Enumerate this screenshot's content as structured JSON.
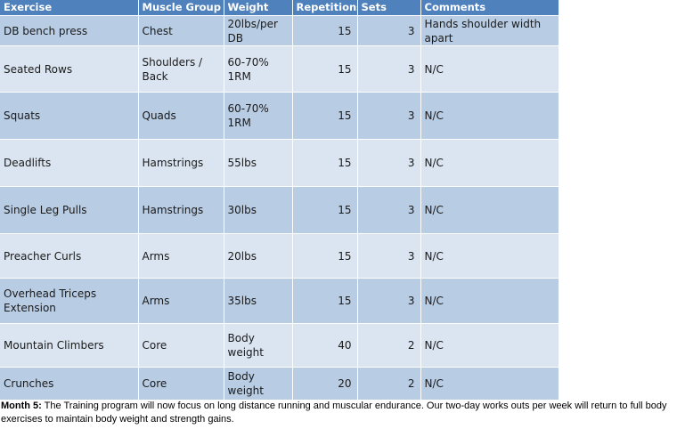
{
  "table": {
    "headers": [
      "Exercise",
      "Muscle Group",
      "Weight",
      "Repetitions",
      "Sets",
      "Comments"
    ],
    "rows": [
      {
        "exercise": "DB bench press",
        "muscle": "Chest",
        "weight": "20lbs/per DB",
        "reps": "15",
        "sets": "3",
        "comments": "Hands shoulder width apart"
      },
      {
        "exercise": "Seated Rows",
        "muscle": "Shoulders / Back",
        "weight": "60-70% 1RM",
        "reps": "15",
        "sets": "3",
        "comments": "N/C"
      },
      {
        "exercise": "Squats",
        "muscle": "Quads",
        "weight": "60-70% 1RM",
        "reps": "15",
        "sets": "3",
        "comments": "N/C"
      },
      {
        "exercise": "Deadlifts",
        "muscle": "Hamstrings",
        "weight": "55lbs",
        "reps": "15",
        "sets": "3",
        "comments": "N/C"
      },
      {
        "exercise": "Single Leg Pulls",
        "muscle": "Hamstrings",
        "weight": "30lbs",
        "reps": "15",
        "sets": "3",
        "comments": "N/C"
      },
      {
        "exercise": "Preacher Curls",
        "muscle": "Arms",
        "weight": "20lbs",
        "reps": "15",
        "sets": "3",
        "comments": "N/C"
      },
      {
        "exercise": "Overhead Triceps Extension",
        "muscle": "Arms",
        "weight": "35lbs",
        "reps": "15",
        "sets": "3",
        "comments": "N/C"
      },
      {
        "exercise": "Mountain Climbers",
        "muscle": "Core",
        "weight": "Body weight",
        "reps": "40",
        "sets": "2",
        "comments": "N/C"
      },
      {
        "exercise": "Crunches",
        "muscle": "Core",
        "weight": "Body weight",
        "reps": "20",
        "sets": "2",
        "comments": "N/C"
      }
    ]
  },
  "note": {
    "label": "Month 5:",
    "text": " The Training program will now focus on long distance running and muscular endurance. Our two-day works outs per week will return to full body exercises to maintain body weight and strength gains."
  },
  "colors": {
    "header": "#4f81bd",
    "row_dark": "#b8cce4",
    "row_light": "#dbe5f1"
  }
}
